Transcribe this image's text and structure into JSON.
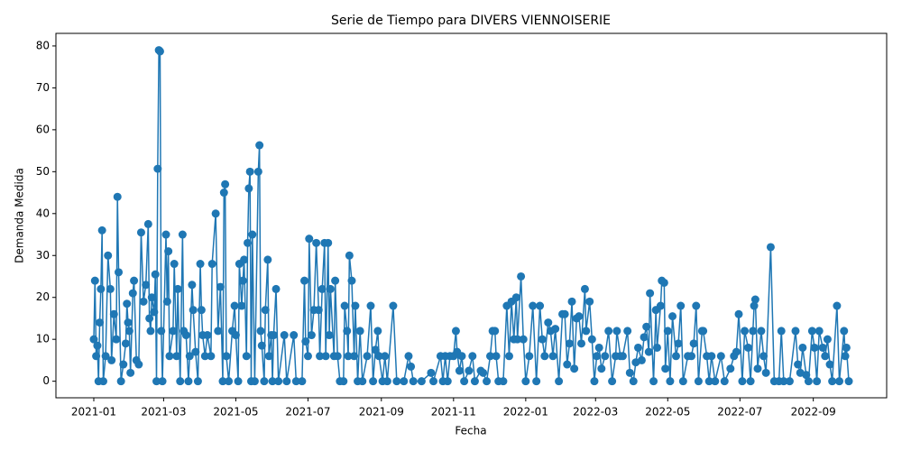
{
  "chart_data": {
    "type": "line",
    "title": "Serie de Tiempo para DIVERS VIENNOISERIE",
    "x_label": "Fecha",
    "y_label": "Demanda Medida",
    "x": [
      "2021-01-01",
      "2021-01-02",
      "2021-01-03",
      "2021-01-04",
      "2021-01-05",
      "2021-01-06",
      "2021-01-07",
      "2021-01-08",
      "2021-01-09",
      "2021-01-11",
      "2021-01-13",
      "2021-01-15",
      "2021-01-16",
      "2021-01-18",
      "2021-01-20",
      "2021-01-21",
      "2021-01-22",
      "2021-01-24",
      "2021-01-26",
      "2021-01-28",
      "2021-01-29",
      "2021-01-30",
      "2021-01-31",
      "2021-02-01",
      "2021-02-03",
      "2021-02-04",
      "2021-02-06",
      "2021-02-08",
      "2021-02-10",
      "2021-02-12",
      "2021-02-14",
      "2021-02-16",
      "2021-02-17",
      "2021-02-18",
      "2021-02-19",
      "2021-02-21",
      "2021-02-22",
      "2021-02-23",
      "2021-02-24",
      "2021-02-25",
      "2021-02-26",
      "2021-02-27",
      "2021-02-28",
      "2021-03-03",
      "2021-03-04",
      "2021-03-05",
      "2021-03-06",
      "2021-03-09",
      "2021-03-10",
      "2021-03-12",
      "2021-03-13",
      "2021-03-15",
      "2021-03-17",
      "2021-03-18",
      "2021-03-20",
      "2021-03-22",
      "2021-03-23",
      "2021-03-25",
      "2021-03-26",
      "2021-03-28",
      "2021-03-30",
      "2021-04-01",
      "2021-04-02",
      "2021-04-03",
      "2021-04-05",
      "2021-04-07",
      "2021-04-10",
      "2021-04-11",
      "2021-04-14",
      "2021-04-16",
      "2021-04-18",
      "2021-04-20",
      "2021-04-21",
      "2021-04-22",
      "2021-04-23",
      "2021-04-25",
      "2021-04-28",
      "2021-04-30",
      "2021-05-01",
      "2021-05-03",
      "2021-05-04",
      "2021-05-06",
      "2021-05-07",
      "2021-05-08",
      "2021-05-10",
      "2021-05-11",
      "2021-05-12",
      "2021-05-13",
      "2021-05-14",
      "2021-05-15",
      "2021-05-17",
      "2021-05-20",
      "2021-05-21",
      "2021-05-22",
      "2021-05-23",
      "2021-05-25",
      "2021-05-26",
      "2021-05-28",
      "2021-05-29",
      "2021-05-31",
      "2021-06-01",
      "2021-06-02",
      "2021-06-04",
      "2021-06-06",
      "2021-06-11",
      "2021-06-13",
      "2021-06-19",
      "2021-06-21",
      "2021-06-26",
      "2021-06-28",
      "2021-06-29",
      "2021-07-01",
      "2021-07-02",
      "2021-07-04",
      "2021-07-06",
      "2021-07-08",
      "2021-07-10",
      "2021-07-11",
      "2021-07-13",
      "2021-07-15",
      "2021-07-16",
      "2021-07-18",
      "2021-07-19",
      "2021-07-20",
      "2021-07-23",
      "2021-07-24",
      "2021-07-26",
      "2021-07-28",
      "2021-07-31",
      "2021-08-01",
      "2021-08-03",
      "2021-08-04",
      "2021-08-05",
      "2021-08-07",
      "2021-08-09",
      "2021-08-10",
      "2021-08-12",
      "2021-08-14",
      "2021-08-16",
      "2021-08-20",
      "2021-08-23",
      "2021-08-25",
      "2021-08-27",
      "2021-08-29",
      "2021-08-30",
      "2021-09-02",
      "2021-09-04",
      "2021-09-06",
      "2021-09-11",
      "2021-09-14",
      "2021-09-20",
      "2021-09-24",
      "2021-09-26",
      "2021-09-28",
      "2021-10-05",
      "2021-10-13",
      "2021-10-15",
      "2021-10-21",
      "2021-10-23",
      "2021-10-25",
      "2021-10-27",
      "2021-10-29",
      "2021-11-01",
      "2021-11-03",
      "2021-11-04",
      "2021-11-06",
      "2021-11-08",
      "2021-11-10",
      "2021-11-14",
      "2021-11-17",
      "2021-11-19",
      "2021-11-24",
      "2021-11-26",
      "2021-11-29",
      "2021-12-02",
      "2021-12-04",
      "2021-12-06",
      "2021-12-07",
      "2021-12-09",
      "2021-12-13",
      "2021-12-16",
      "2021-12-18",
      "2021-12-20",
      "2021-12-22",
      "2021-12-24",
      "2021-12-25",
      "2021-12-28",
      "2021-12-30",
      "2022-01-01",
      "2022-01-04",
      "2022-01-07",
      "2022-01-10",
      "2022-01-13",
      "2022-01-15",
      "2022-01-17",
      "2022-01-20",
      "2022-01-22",
      "2022-01-24",
      "2022-01-26",
      "2022-01-29",
      "2022-02-01",
      "2022-02-03",
      "2022-02-05",
      "2022-02-07",
      "2022-02-09",
      "2022-02-11",
      "2022-02-13",
      "2022-02-15",
      "2022-02-17",
      "2022-02-20",
      "2022-02-21",
      "2022-02-24",
      "2022-02-26",
      "2022-02-28",
      "2022-03-02",
      "2022-03-04",
      "2022-03-06",
      "2022-03-09",
      "2022-03-12",
      "2022-03-15",
      "2022-03-18",
      "2022-03-19",
      "2022-03-22",
      "2022-03-24",
      "2022-03-28",
      "2022-03-30",
      "2022-04-02",
      "2022-04-04",
      "2022-04-06",
      "2022-04-09",
      "2022-04-11",
      "2022-04-13",
      "2022-04-15",
      "2022-04-16",
      "2022-04-19",
      "2022-04-21",
      "2022-04-22",
      "2022-04-25",
      "2022-04-26",
      "2022-04-28",
      "2022-04-29",
      "2022-05-01",
      "2022-05-03",
      "2022-05-05",
      "2022-05-08",
      "2022-05-10",
      "2022-05-12",
      "2022-05-14",
      "2022-05-18",
      "2022-05-21",
      "2022-05-23",
      "2022-05-25",
      "2022-05-27",
      "2022-05-30",
      "2022-05-31",
      "2022-06-03",
      "2022-06-05",
      "2022-06-07",
      "2022-06-10",
      "2022-06-15",
      "2022-06-18",
      "2022-06-23",
      "2022-06-26",
      "2022-06-28",
      "2022-06-30",
      "2022-07-03",
      "2022-07-05",
      "2022-07-08",
      "2022-07-10",
      "2022-07-12",
      "2022-07-13",
      "2022-07-14",
      "2022-07-16",
      "2022-07-19",
      "2022-07-21",
      "2022-07-23",
      "2022-07-27",
      "2022-07-30",
      "2022-08-03",
      "2022-08-05",
      "2022-08-07",
      "2022-08-12",
      "2022-08-17",
      "2022-08-19",
      "2022-08-21",
      "2022-08-23",
      "2022-08-26",
      "2022-08-28",
      "2022-08-31",
      "2022-09-02",
      "2022-09-04",
      "2022-09-06",
      "2022-09-09",
      "2022-09-11",
      "2022-09-13",
      "2022-09-15",
      "2022-09-17",
      "2022-09-21",
      "2022-09-23",
      "2022-09-27",
      "2022-09-28",
      "2022-09-29",
      "2022-10-01"
    ],
    "values": [
      10,
      24,
      6,
      8.5,
      0,
      14,
      22,
      36,
      0,
      6,
      30,
      22,
      5,
      16,
      10,
      44,
      26,
      0,
      4,
      9,
      18.5,
      14,
      12,
      2,
      21,
      24,
      5,
      4,
      35.5,
      19,
      23,
      37.5,
      15,
      12,
      20,
      16.5,
      25.5,
      0,
      50.7,
      79,
      78.7,
      12,
      0,
      35,
      19,
      31,
      6,
      12,
      28,
      6,
      22,
      0,
      35,
      12,
      11,
      0,
      6,
      23,
      17,
      7,
      0,
      28,
      17,
      11,
      6,
      11,
      6,
      28,
      40,
      12,
      22.5,
      0,
      45,
      47,
      6,
      0,
      12,
      18,
      11,
      0,
      28,
      18,
      24,
      29,
      6,
      33,
      46,
      50,
      0,
      35,
      0,
      50,
      56.3,
      12,
      8.5,
      0,
      17,
      29,
      6,
      11,
      0,
      11,
      22,
      0,
      11,
      0,
      11,
      0,
      0,
      24,
      9.5,
      6,
      34,
      11,
      17,
      33,
      17,
      6,
      22,
      33,
      6,
      33,
      11,
      22,
      6,
      24,
      6,
      0,
      0,
      18,
      12,
      6,
      30,
      24,
      6,
      18,
      0,
      12,
      0,
      6,
      18,
      0,
      7.5,
      12,
      6,
      0,
      6,
      0,
      18,
      0,
      0,
      6,
      3.5,
      0,
      0,
      2,
      0,
      6,
      0,
      6,
      0,
      6,
      6,
      12,
      7,
      2.5,
      6,
      0,
      2.5,
      6,
      0,
      2.5,
      2,
      0,
      6,
      12,
      12,
      6,
      0,
      0,
      18,
      6,
      19,
      10,
      20,
      10,
      25,
      10,
      0,
      6,
      18,
      0,
      18,
      10,
      6,
      14,
      12,
      6,
      12.5,
      0,
      16,
      16,
      4,
      9,
      19,
      3,
      15,
      15.5,
      9,
      22,
      12,
      19,
      10,
      0,
      6,
      8,
      3,
      6,
      12,
      0,
      6,
      12,
      6,
      6,
      12,
      2,
      0,
      4.5,
      8,
      5,
      10.5,
      13,
      7,
      21,
      0,
      17,
      8,
      18,
      24,
      23.5,
      3,
      12,
      0,
      15.5,
      6,
      9,
      18,
      0,
      6,
      6,
      9,
      18,
      0,
      12,
      12,
      6,
      0,
      6,
      0,
      6,
      0,
      3,
      6,
      7,
      16,
      0,
      12,
      8,
      0,
      12,
      18,
      19.5,
      3,
      12,
      6,
      2,
      32,
      0,
      0,
      12,
      0,
      0,
      12,
      4,
      2,
      8,
      1.5,
      0,
      12,
      8,
      0,
      12,
      8,
      6,
      10,
      4,
      0,
      18,
      0,
      12,
      6,
      8,
      0
    ],
    "color": "#1f77b4",
    "xlim": [
      "2020-11-30",
      "2022-11-02"
    ],
    "ylim": [
      -3.95,
      83
    ],
    "xticks": [
      {
        "value": "2021-01-01",
        "label": "2021-01"
      },
      {
        "value": "2021-03-01",
        "label": "2021-03"
      },
      {
        "value": "2021-05-01",
        "label": "2021-05"
      },
      {
        "value": "2021-07-01",
        "label": "2021-07"
      },
      {
        "value": "2021-09-01",
        "label": "2021-09"
      },
      {
        "value": "2021-11-01",
        "label": "2021-11"
      },
      {
        "value": "2022-01-01",
        "label": "2022-01"
      },
      {
        "value": "2022-03-01",
        "label": "2022-03"
      },
      {
        "value": "2022-05-01",
        "label": "2022-05"
      },
      {
        "value": "2022-07-01",
        "label": "2022-07"
      },
      {
        "value": "2022-09-01",
        "label": "2022-09"
      }
    ],
    "yticks": [
      0,
      10,
      20,
      30,
      40,
      50,
      60,
      70,
      80
    ],
    "grid": false
  }
}
